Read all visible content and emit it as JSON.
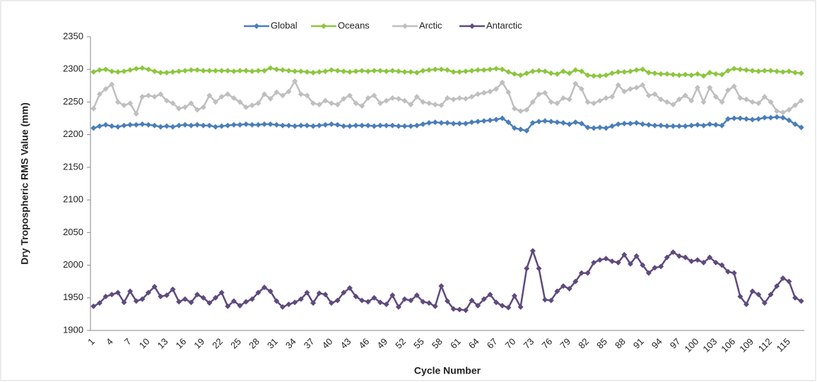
{
  "chart_data": {
    "type": "line",
    "y_label": "Dry Tropospheric RMS Value (mm)",
    "x_label": "Cycle Number",
    "legend": "top",
    "grid": false,
    "ylim": [
      1900,
      2350
    ],
    "yticks": [
      1900,
      1950,
      2000,
      2050,
      2100,
      2150,
      2200,
      2250,
      2300,
      2350
    ],
    "categories": [
      1,
      null,
      null,
      4,
      null,
      null,
      7,
      null,
      null,
      10,
      null,
      null,
      13,
      null,
      null,
      16,
      null,
      null,
      19,
      null,
      null,
      22,
      null,
      null,
      25,
      null,
      null,
      28,
      null,
      null,
      31,
      null,
      null,
      34,
      null,
      null,
      37,
      null,
      null,
      40,
      null,
      null,
      43,
      null,
      null,
      46,
      null,
      null,
      49,
      null,
      null,
      52,
      null,
      null,
      55,
      null,
      null,
      58,
      null,
      null,
      61,
      null,
      null,
      64,
      null,
      null,
      67,
      null,
      null,
      70,
      null,
      null,
      73,
      null,
      null,
      76,
      null,
      null,
      79,
      null,
      null,
      82,
      null,
      null,
      85,
      null,
      null,
      88,
      null,
      null,
      91,
      null,
      null,
      94,
      null,
      null,
      97,
      null,
      null,
      100,
      null,
      null,
      103,
      null,
      null,
      106,
      null,
      null,
      109,
      null,
      null,
      112,
      null,
      null,
      115,
      null,
      null
    ],
    "series": [
      {
        "name": "Global",
        "color": "#4a7ebb",
        "values": [
          2210,
          2213,
          2215,
          2213,
          2212,
          2214,
          2215,
          2215,
          2216,
          2215,
          2214,
          2212,
          2213,
          2212,
          2214,
          2215,
          2214,
          2215,
          2214,
          2214,
          2212,
          2213,
          2214,
          2215,
          2215,
          2216,
          2215,
          2215,
          2216,
          2216,
          2215,
          2214,
          2214,
          2213,
          2214,
          2214,
          2213,
          2214,
          2215,
          2216,
          2215,
          2213,
          2213,
          2214,
          2214,
          2214,
          2213,
          2214,
          2214,
          2214,
          2213,
          2213,
          2213,
          2214,
          2216,
          2218,
          2219,
          2218,
          2218,
          2217,
          2217,
          2217,
          2219,
          2220,
          2221,
          2222,
          2223,
          2225,
          2219,
          2210,
          2208,
          2206,
          2218,
          2220,
          2221,
          2220,
          2219,
          2218,
          2216,
          2219,
          2217,
          2211,
          2210,
          2211,
          2210,
          2213,
          2216,
          2217,
          2217,
          2218,
          2216,
          2215,
          2214,
          2214,
          2213,
          2213,
          2213,
          2213,
          2214,
          2215,
          2214,
          2216,
          2215,
          2214,
          2224,
          2225,
          2225,
          2224,
          2223,
          2224,
          2226,
          2226,
          2227,
          2226,
          2222,
          2216,
          2211
        ]
      },
      {
        "name": "Oceans",
        "color": "#8cc63e",
        "values": [
          2296,
          2299,
          2300,
          2297,
          2296,
          2297,
          2299,
          2301,
          2302,
          2300,
          2297,
          2295,
          2295,
          2296,
          2297,
          2298,
          2299,
          2299,
          2298,
          2298,
          2298,
          2298,
          2298,
          2297,
          2298,
          2298,
          2297,
          2298,
          2298,
          2302,
          2300,
          2299,
          2298,
          2297,
          2297,
          2296,
          2295,
          2296,
          2297,
          2299,
          2298,
          2297,
          2296,
          2297,
          2298,
          2297,
          2298,
          2298,
          2297,
          2298,
          2297,
          2296,
          2296,
          2295,
          2298,
          2299,
          2300,
          2300,
          2299,
          2296,
          2296,
          2297,
          2298,
          2299,
          2299,
          2300,
          2301,
          2300,
          2296,
          2293,
          2291,
          2294,
          2297,
          2298,
          2297,
          2294,
          2293,
          2297,
          2294,
          2299,
          2297,
          2291,
          2290,
          2290,
          2291,
          2294,
          2296,
          2296,
          2297,
          2299,
          2300,
          2295,
          2294,
          2293,
          2293,
          2292,
          2291,
          2292,
          2291,
          2293,
          2290,
          2295,
          2293,
          2292,
          2298,
          2301,
          2300,
          2299,
          2298,
          2297,
          2298,
          2298,
          2297,
          2296,
          2297,
          2295,
          2294
        ]
      },
      {
        "name": "Arctic",
        "color": "#bfbfbf",
        "values": [
          2240,
          2262,
          2270,
          2277,
          2250,
          2245,
          2248,
          2232,
          2258,
          2260,
          2258,
          2262,
          2252,
          2248,
          2240,
          2242,
          2248,
          2238,
          2242,
          2260,
          2250,
          2258,
          2262,
          2256,
          2250,
          2242,
          2245,
          2248,
          2262,
          2255,
          2265,
          2260,
          2266,
          2282,
          2262,
          2260,
          2248,
          2246,
          2252,
          2248,
          2246,
          2255,
          2260,
          2248,
          2244,
          2256,
          2260,
          2248,
          2252,
          2256,
          2255,
          2252,
          2246,
          2258,
          2250,
          2248,
          2246,
          2245,
          2256,
          2254,
          2256,
          2255,
          2258,
          2262,
          2264,
          2266,
          2270,
          2280,
          2265,
          2240,
          2236,
          2238,
          2250,
          2262,
          2264,
          2250,
          2248,
          2256,
          2254,
          2278,
          2270,
          2250,
          2248,
          2252,
          2256,
          2258,
          2276,
          2266,
          2270,
          2272,
          2276,
          2260,
          2262,
          2254,
          2250,
          2246,
          2254,
          2260,
          2252,
          2272,
          2250,
          2272,
          2258,
          2250,
          2268,
          2274,
          2256,
          2254,
          2250,
          2248,
          2258,
          2250,
          2236,
          2234,
          2238,
          2245,
          2252
        ]
      },
      {
        "name": "Antarctic",
        "color": "#5f4a7d",
        "values": [
          1937,
          1942,
          1952,
          1955,
          1958,
          1943,
          1960,
          1945,
          1948,
          1958,
          1967,
          1952,
          1954,
          1963,
          1944,
          1948,
          1943,
          1955,
          1950,
          1942,
          1950,
          1958,
          1937,
          1945,
          1938,
          1944,
          1948,
          1958,
          1966,
          1960,
          1945,
          1936,
          1940,
          1943,
          1948,
          1958,
          1942,
          1957,
          1955,
          1942,
          1946,
          1958,
          1965,
          1952,
          1946,
          1944,
          1950,
          1943,
          1940,
          1954,
          1936,
          1948,
          1946,
          1954,
          1944,
          1942,
          1937,
          1968,
          1945,
          1933,
          1932,
          1931,
          1946,
          1938,
          1948,
          1955,
          1943,
          1938,
          1935,
          1953,
          1936,
          1995,
          2022,
          1995,
          1947,
          1946,
          1960,
          1968,
          1964,
          1975,
          1988,
          1988,
          2004,
          2008,
          2010,
          2006,
          2004,
          2016,
          2002,
          2014,
          2000,
          1988,
          1996,
          1998,
          2012,
          2020,
          2014,
          2012,
          2006,
          2008,
          2004,
          2012,
          2004,
          2000,
          1990,
          1988,
          1952,
          1940,
          1960,
          1955,
          1942,
          1955,
          1968,
          1980,
          1975,
          1950,
          1945
        ]
      }
    ]
  }
}
